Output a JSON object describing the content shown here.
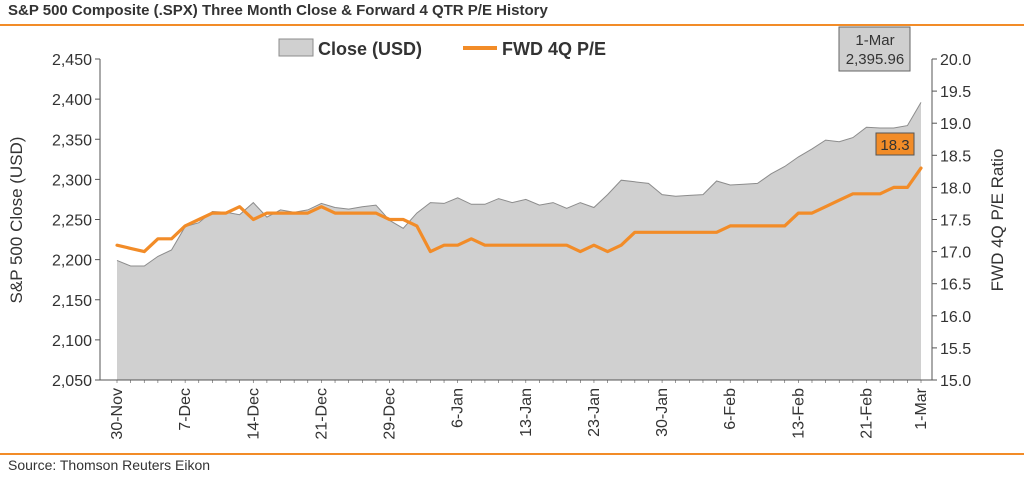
{
  "header": {
    "title": "S&P 500 Composite (.SPX) Three Month Close & Forward 4 QTR P/E History"
  },
  "footer": {
    "source": "Source: Thomson Reuters Eikon"
  },
  "colors": {
    "accent": "#f28c28",
    "area_fill": "#d0d0d0",
    "area_stroke": "#8c8c8c",
    "axis": "#555555"
  },
  "chart_data": {
    "type": "area",
    "title": "S&P 500 Composite (.SPX) Three Month Close & Forward 4 QTR P/E History",
    "ylabel_left": "S&P 500 Close (USD)",
    "ylabel_right": "FWD 4Q P/E Ratio",
    "ylim_left": [
      2050,
      2450
    ],
    "ylim_right": [
      15.0,
      20.0
    ],
    "yticks_left": [
      "2,050",
      "2,100",
      "2,150",
      "2,200",
      "2,250",
      "2,300",
      "2,350",
      "2,400",
      "2,450"
    ],
    "yticks_right": [
      "15.0",
      "15.5",
      "16.0",
      "16.5",
      "17.0",
      "17.5",
      "18.0",
      "18.5",
      "19.0",
      "19.5",
      "20.0"
    ],
    "xticks": [
      {
        "label": "30-Nov",
        "index": 0
      },
      {
        "label": "7-Dec",
        "index": 5
      },
      {
        "label": "14-Dec",
        "index": 10
      },
      {
        "label": "21-Dec",
        "index": 15
      },
      {
        "label": "29-Dec",
        "index": 20
      },
      {
        "label": "6-Jan",
        "index": 25
      },
      {
        "label": "13-Jan",
        "index": 30
      },
      {
        "label": "23-Jan",
        "index": 35
      },
      {
        "label": "30-Jan",
        "index": 40
      },
      {
        "label": "6-Feb",
        "index": 45
      },
      {
        "label": "13-Feb",
        "index": 50
      },
      {
        "label": "21-Feb",
        "index": 55
      },
      {
        "label": "1-Mar",
        "index": 59
      }
    ],
    "legend": {
      "position": "top-center",
      "entries": [
        "Close (USD)",
        "FWD 4Q P/E"
      ]
    },
    "series": [
      {
        "name": "Close (USD)",
        "type": "area",
        "axis": "left",
        "values": [
          2199,
          2192,
          2192,
          2204,
          2212,
          2241,
          2246,
          2260,
          2259,
          2256,
          2271,
          2253,
          2262,
          2259,
          2262,
          2270,
          2265,
          2263,
          2266,
          2268,
          2249,
          2239,
          2258,
          2271,
          2270,
          2277,
          2269,
          2269,
          2276,
          2271,
          2275,
          2268,
          2271,
          2264,
          2271,
          2265,
          2281,
          2299,
          2297,
          2295,
          2281,
          2279,
          2280,
          2281,
          2298,
          2293,
          2294,
          2295,
          2307,
          2316,
          2328,
          2338,
          2349,
          2347,
          2352,
          2365,
          2364,
          2364,
          2367,
          2395.96
        ]
      },
      {
        "name": "FWD 4Q P/E",
        "type": "line",
        "axis": "right",
        "values": [
          17.1,
          17.05,
          17.0,
          17.2,
          17.2,
          17.4,
          17.5,
          17.6,
          17.6,
          17.7,
          17.5,
          17.6,
          17.6,
          17.6,
          17.6,
          17.7,
          17.6,
          17.6,
          17.6,
          17.6,
          17.5,
          17.5,
          17.4,
          17.0,
          17.1,
          17.1,
          17.2,
          17.1,
          17.1,
          17.1,
          17.1,
          17.1,
          17.1,
          17.1,
          17.0,
          17.1,
          17.0,
          17.1,
          17.3,
          17.3,
          17.3,
          17.3,
          17.3,
          17.3,
          17.3,
          17.4,
          17.4,
          17.4,
          17.4,
          17.4,
          17.6,
          17.6,
          17.7,
          17.8,
          17.9,
          17.9,
          17.9,
          18.0,
          18.0,
          18.3
        ]
      }
    ],
    "annotations": [
      {
        "series": "Close (USD)",
        "date": "1-Mar",
        "value": "2,395.96"
      },
      {
        "series": "FWD 4Q P/E",
        "value": "18.3"
      }
    ]
  }
}
